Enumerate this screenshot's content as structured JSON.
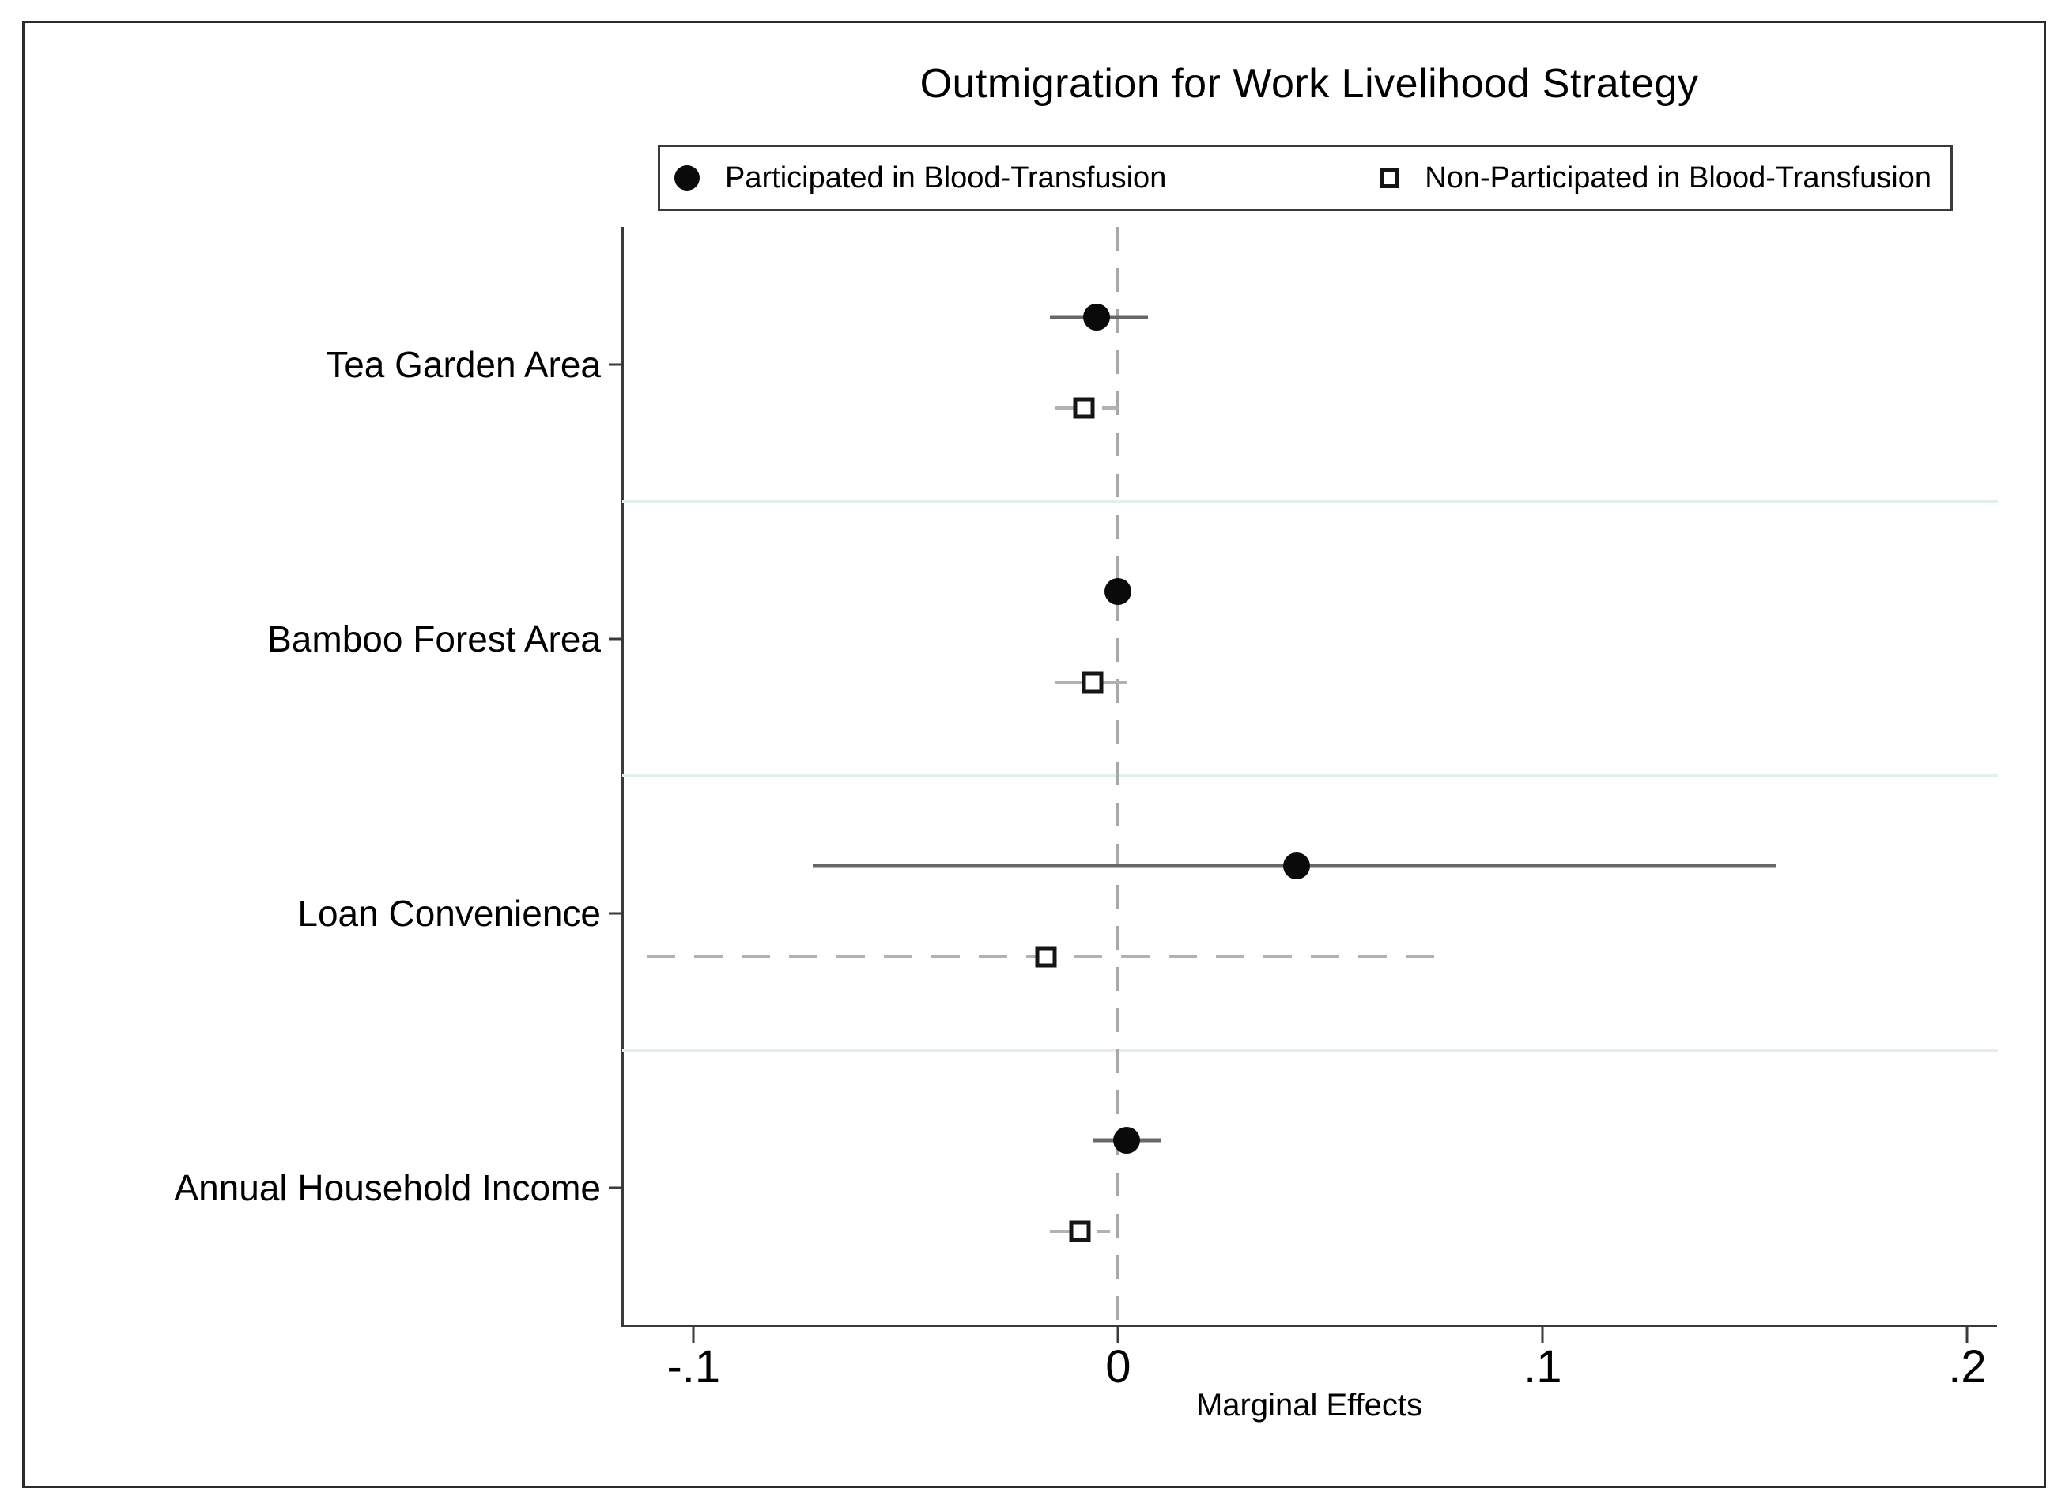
{
  "figure": {
    "title": "Outmigration for Work Livelihood Strategy"
  },
  "legend": {
    "position": "top",
    "items": [
      {
        "marker": "filled-circle-icon",
        "label": "Participated in Blood-Transfusion"
      },
      {
        "marker": "hollow-square-icon",
        "label": "Non-Participated in Blood-Transfusion"
      }
    ]
  },
  "chart_data": {
    "type": "scatter",
    "subtype": "coefficient-plot-with-confidence-intervals",
    "title": "Outmigration for Work Livelihood Strategy",
    "xlabel": "Marginal Effects",
    "ylabel": "",
    "xlim": [
      -0.117,
      0.207
    ],
    "zero_reference_line": 0,
    "grid": "horizontal-category-separators",
    "legend_position": "top",
    "x_ticks": [
      {
        "value": -0.1,
        "label": "-.1"
      },
      {
        "value": 0,
        "label": "0"
      },
      {
        "value": 0.1,
        "label": ".1"
      },
      {
        "value": 0.2,
        "label": ".2"
      }
    ],
    "categories": [
      "Tea Garden Area",
      "Bamboo Forest Area",
      "Loan Convenience",
      "Annual Household Income"
    ],
    "series": [
      {
        "name": "Participated in Blood-Transfusion",
        "marker": "filled-circle",
        "ci_line_style": "solid",
        "points": [
          {
            "category": "Tea Garden Area",
            "estimate": -0.005,
            "ci_low": -0.016,
            "ci_high": 0.007
          },
          {
            "category": "Bamboo Forest Area",
            "estimate": 0.0,
            "ci_low": -0.003,
            "ci_high": 0.003
          },
          {
            "category": "Loan Convenience",
            "estimate": 0.042,
            "ci_low": -0.072,
            "ci_high": 0.155
          },
          {
            "category": "Annual Household Income",
            "estimate": 0.002,
            "ci_low": -0.006,
            "ci_high": 0.01
          }
        ]
      },
      {
        "name": "Non-Participated in Blood-Transfusion",
        "marker": "hollow-square",
        "ci_line_style": "dashed",
        "points": [
          {
            "category": "Tea Garden Area",
            "estimate": -0.008,
            "ci_low": -0.015,
            "ci_high": 0.0
          },
          {
            "category": "Bamboo Forest Area",
            "estimate": -0.006,
            "ci_low": -0.015,
            "ci_high": 0.002
          },
          {
            "category": "Loan Convenience",
            "estimate": -0.017,
            "ci_low": -0.111,
            "ci_high": 0.078
          },
          {
            "category": "Annual Household Income",
            "estimate": -0.009,
            "ci_low": -0.016,
            "ci_high": -0.002
          }
        ]
      }
    ]
  },
  "colors": {
    "solid_ci": "#686868",
    "dashed_ci": "#b2b2b2",
    "zero_line": "#a8a8a8",
    "gridline": "#e3eeee",
    "axis": "#3a3a3a",
    "marker_fill": "#0a0a0a",
    "square_border": "#151515",
    "text": "#000000"
  }
}
